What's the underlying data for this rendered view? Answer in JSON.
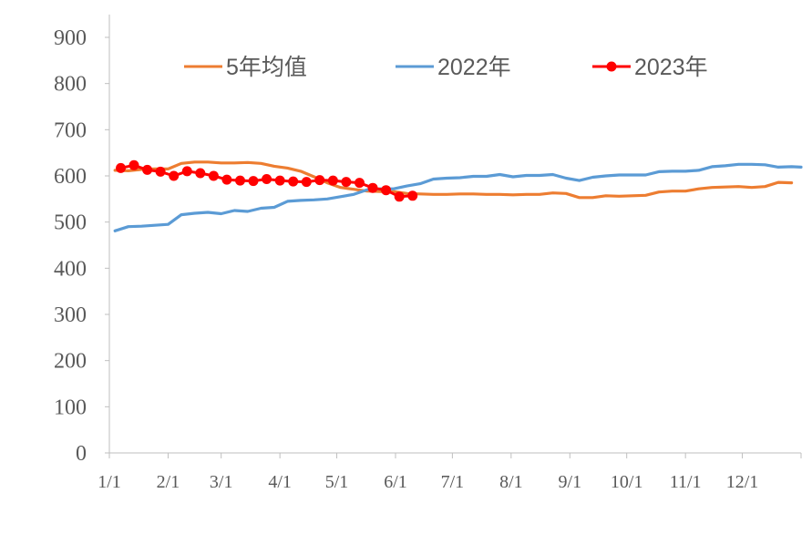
{
  "chart_data": {
    "type": "line",
    "title": "",
    "xlabel": "",
    "ylabel": "",
    "ylim": [
      0,
      900
    ],
    "y_ticks": [
      "0",
      "100",
      "200",
      "300",
      "400",
      "500",
      "600",
      "700",
      "800",
      "900"
    ],
    "x_ticks": [
      "1/1",
      "2/1",
      "3/1",
      "4/1",
      "5/1",
      "6/1",
      "7/1",
      "8/1",
      "9/1",
      "10/1",
      "11/1",
      "12/1"
    ],
    "x_tick_days": [
      0,
      31,
      59,
      90,
      120,
      151,
      181,
      212,
      243,
      273,
      304,
      334
    ],
    "x_range_days": [
      0,
      365
    ],
    "grid": false,
    "legend_position": "top",
    "series": [
      {
        "name": "5年均值",
        "color": "#ED7D31",
        "markers": false,
        "points": [
          [
            3,
            612
          ],
          [
            10,
            611
          ],
          [
            17,
            614
          ],
          [
            24,
            615
          ],
          [
            31,
            615
          ],
          [
            38,
            627
          ],
          [
            45,
            630
          ],
          [
            52,
            630
          ],
          [
            59,
            628
          ],
          [
            66,
            628
          ],
          [
            73,
            629
          ],
          [
            80,
            627
          ],
          [
            87,
            621
          ],
          [
            94,
            617
          ],
          [
            101,
            610
          ],
          [
            108,
            598
          ],
          [
            115,
            585
          ],
          [
            122,
            575
          ],
          [
            129,
            571
          ],
          [
            136,
            567
          ],
          [
            143,
            566
          ],
          [
            150,
            566
          ],
          [
            157,
            562
          ],
          [
            164,
            561
          ],
          [
            171,
            560
          ],
          [
            178,
            560
          ],
          [
            185,
            561
          ],
          [
            192,
            561
          ],
          [
            199,
            560
          ],
          [
            206,
            560
          ],
          [
            213,
            559
          ],
          [
            220,
            560
          ],
          [
            227,
            560
          ],
          [
            234,
            563
          ],
          [
            241,
            562
          ],
          [
            248,
            553
          ],
          [
            255,
            553
          ],
          [
            262,
            557
          ],
          [
            269,
            556
          ],
          [
            276,
            557
          ],
          [
            283,
            558
          ],
          [
            290,
            565
          ],
          [
            297,
            567
          ],
          [
            304,
            567
          ],
          [
            311,
            572
          ],
          [
            318,
            575
          ],
          [
            325,
            576
          ],
          [
            332,
            577
          ],
          [
            339,
            575
          ],
          [
            346,
            577
          ],
          [
            353,
            586
          ],
          [
            360,
            585
          ]
        ]
      },
      {
        "name": "2022年",
        "color": "#5B9BD5",
        "markers": false,
        "points": [
          [
            3,
            481
          ],
          [
            10,
            490
          ],
          [
            17,
            491
          ],
          [
            24,
            493
          ],
          [
            31,
            495
          ],
          [
            38,
            516
          ],
          [
            45,
            519
          ],
          [
            52,
            521
          ],
          [
            59,
            518
          ],
          [
            66,
            525
          ],
          [
            73,
            523
          ],
          [
            80,
            530
          ],
          [
            87,
            532
          ],
          [
            94,
            545
          ],
          [
            101,
            547
          ],
          [
            108,
            548
          ],
          [
            115,
            550
          ],
          [
            122,
            555
          ],
          [
            129,
            560
          ],
          [
            136,
            570
          ],
          [
            143,
            572
          ],
          [
            150,
            572
          ],
          [
            157,
            578
          ],
          [
            164,
            583
          ],
          [
            171,
            593
          ],
          [
            178,
            595
          ],
          [
            185,
            596
          ],
          [
            192,
            599
          ],
          [
            199,
            599
          ],
          [
            206,
            603
          ],
          [
            213,
            598
          ],
          [
            220,
            601
          ],
          [
            227,
            601
          ],
          [
            234,
            603
          ],
          [
            241,
            595
          ],
          [
            248,
            590
          ],
          [
            255,
            597
          ],
          [
            262,
            600
          ],
          [
            269,
            602
          ],
          [
            276,
            602
          ],
          [
            283,
            602
          ],
          [
            290,
            609
          ],
          [
            297,
            610
          ],
          [
            304,
            610
          ],
          [
            311,
            612
          ],
          [
            318,
            620
          ],
          [
            325,
            622
          ],
          [
            332,
            625
          ],
          [
            339,
            625
          ],
          [
            346,
            624
          ],
          [
            353,
            619
          ],
          [
            360,
            620
          ],
          [
            365,
            619
          ]
        ]
      },
      {
        "name": "2023年",
        "color": "#FF0000",
        "markers": true,
        "points": [
          [
            6,
            617
          ],
          [
            13,
            623
          ],
          [
            20,
            613
          ],
          [
            27,
            609
          ],
          [
            34,
            600
          ],
          [
            41,
            610
          ],
          [
            48,
            606
          ],
          [
            55,
            600
          ],
          [
            62,
            592
          ],
          [
            69,
            590
          ],
          [
            76,
            589
          ],
          [
            83,
            593
          ],
          [
            90,
            590
          ],
          [
            97,
            588
          ],
          [
            104,
            587
          ],
          [
            111,
            591
          ],
          [
            118,
            590
          ],
          [
            125,
            587
          ],
          [
            132,
            585
          ],
          [
            139,
            574
          ],
          [
            146,
            569
          ],
          [
            153,
            555
          ],
          [
            160,
            557
          ]
        ]
      }
    ]
  }
}
